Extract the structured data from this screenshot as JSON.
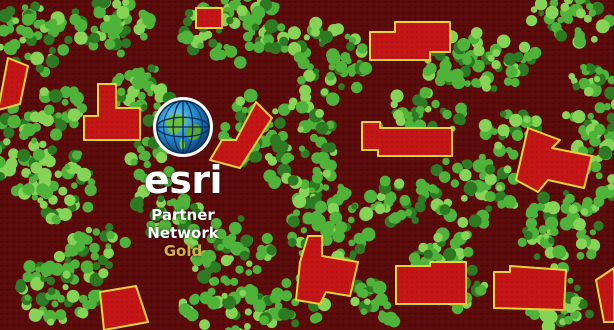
{
  "colors": {
    "ground": "#5a0c0c",
    "ground_dark": "#420606",
    "building_fill": "#c41616",
    "building_outline": "#e8d23a",
    "vegetation": "#4fb33a",
    "vegetation_light": "#86d455",
    "vegetation_dark": "#2d7a22",
    "logo_text": "#ffffff",
    "tier_text": "#d4b24a"
  },
  "legend_classes": [
    "building-footprint",
    "tree-canopy",
    "ground"
  ],
  "badge": {
    "icon": "globe-icon",
    "name": "esri",
    "line1": "Partner",
    "line2": "Network",
    "tier": "Gold"
  }
}
